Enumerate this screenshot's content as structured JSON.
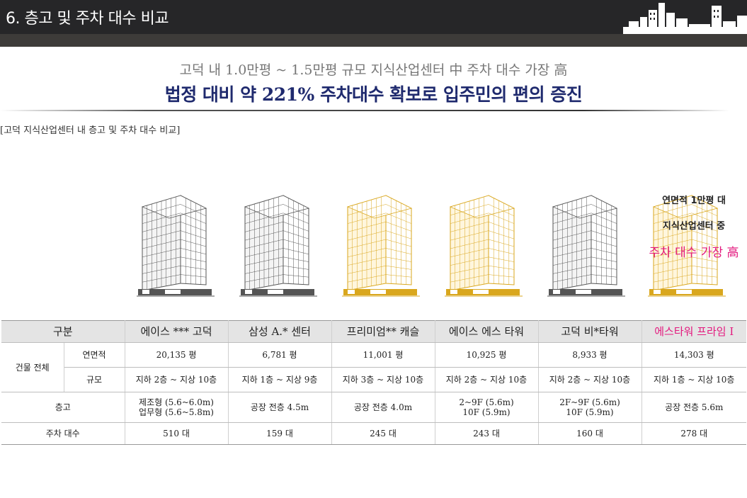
{
  "header": {
    "title": "6. 층고 및 주차 대수 비교"
  },
  "headline": {
    "line1": "고덕 내 1.0만평 ~ 1.5만평 규모 지식산업센터 中 주차 대수 가장 高",
    "line2": "법정 대비 약 221% 주차대수 확보로 입주민의 편의 증진"
  },
  "caption": "[고덕 지식산업센터 내 층고 및 주차 대수 비교]",
  "colors": {
    "accent_pink": "#e3197e",
    "navy": "#1f2a6e",
    "gold": "#d9a71e",
    "gray_bldg": "#555555"
  },
  "buildings": [
    {
      "style": "gray"
    },
    {
      "style": "gray"
    },
    {
      "style": "gold"
    },
    {
      "style": "gold"
    },
    {
      "style": "gray"
    },
    {
      "style": "gold"
    }
  ],
  "note": {
    "line1": "연면적 1만평 대",
    "line2": "지식산업센터 중",
    "line3": "주차 대수 가장 高"
  },
  "table": {
    "category_header": "구분",
    "columns": [
      "에이스 *** 고덕",
      "삼성 A.* 센터",
      "프리미엄** 캐슬",
      "에이스 에스 타워",
      "고덕 비*타워",
      "에스타워 프라임 Ⅰ"
    ],
    "group_label": "건물 전체",
    "rows": {
      "area": {
        "label": "연면적",
        "values": [
          "20,135 평",
          "6,781 평",
          "11,001 평",
          "10,925 평",
          "8,933 평",
          "14,303 평"
        ]
      },
      "scale": {
        "label": "규모",
        "values": [
          "지하 2층 ~ 지상 10층",
          "지하 1층 ~ 지상 9층",
          "지하 3층 ~ 지상 10층",
          "지하 2층 ~ 지상 10층",
          "지하 2층 ~ 지상 10층",
          "지하 1층 ~ 지상 10층"
        ]
      },
      "height": {
        "label": "층고",
        "values": [
          [
            "제조형 (5.6~6.0m)",
            "업무형 (5.6~5.8m)"
          ],
          [
            "공장 전층 4.5m"
          ],
          [
            "공장 전층 4.0m"
          ],
          [
            "2~9F (5.6m)",
            "10F (5.9m)"
          ],
          [
            "2F~9F (5.6m)",
            "10F (5.9m)"
          ],
          [
            "공장 전층 5.6m"
          ]
        ]
      },
      "parking": {
        "label": "주차 대수",
        "values": [
          "510 대",
          "159 대",
          "245 대",
          "243 대",
          "160 대",
          "278 대"
        ]
      }
    }
  }
}
